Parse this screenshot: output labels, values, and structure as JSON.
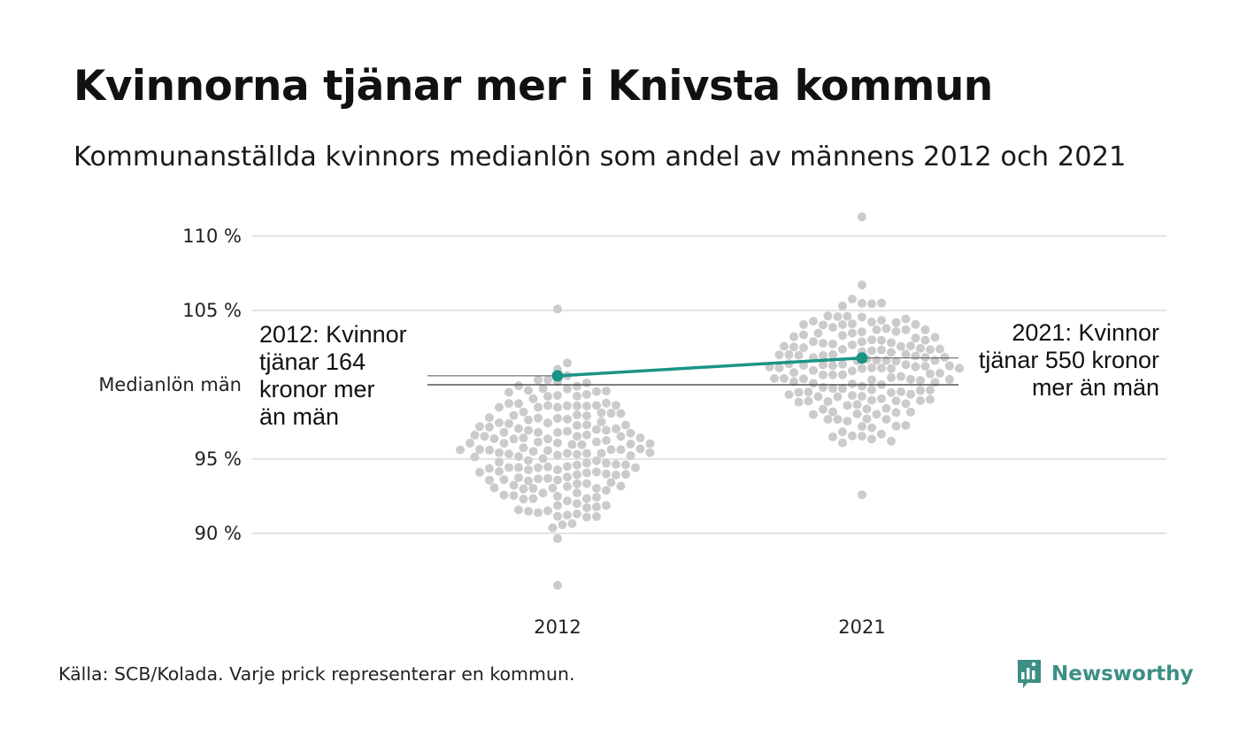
{
  "title": "Kvinnorna tjänar mer i Knivsta kommun",
  "subtitle": "Kommunanställda kvinnors medianlön som andel av männens 2012 och 2021",
  "source": "Källa: SCB/Kolada. Varje prick representerar en kommun.",
  "brand": {
    "name": "Newsworthy",
    "logo_icon": "bar-chart-bubble-icon"
  },
  "colors": {
    "highlight": "#1a9485",
    "dots": "#cbcbcb",
    "grid": "#e3e3e3",
    "brand": "#3c8f84"
  },
  "chart_data": {
    "type": "scatter",
    "subtype": "beeswarm",
    "categories": [
      "2012",
      "2021"
    ],
    "ylim": [
      86,
      111.5
    ],
    "yticks": [
      {
        "value": 110,
        "label": "110 %"
      },
      {
        "value": 105,
        "label": "105 %"
      },
      {
        "value": 100,
        "label": "Medianlön män"
      },
      {
        "value": 95,
        "label": "95 %"
      },
      {
        "value": 90,
        "label": "90 %"
      }
    ],
    "reference_line": {
      "value": 100,
      "label": "Medianlön män"
    },
    "distribution_summary": [
      {
        "category": "2012",
        "min": 86.5,
        "max": 105.1,
        "center": 95.6
      },
      {
        "category": "2021",
        "min": 92.6,
        "max": 111.3,
        "center": 101.1
      }
    ],
    "highlight": {
      "name": "Knivsta",
      "values": [
        {
          "category": "2012",
          "value": 100.6,
          "label": "2012: Kvinnor tjänar 164 kronor mer än män",
          "lines": [
            "2012: Kvinnor",
            "tjänar 164",
            "kronor mer",
            "än män"
          ]
        },
        {
          "category": "2021",
          "value": 101.8,
          "label": "2021: Kvinnor tjänar 550 kronor mer än män",
          "lines": [
            "2021: Kvinnor",
            "tjänar 550 kronor",
            "mer än män"
          ]
        }
      ]
    }
  }
}
